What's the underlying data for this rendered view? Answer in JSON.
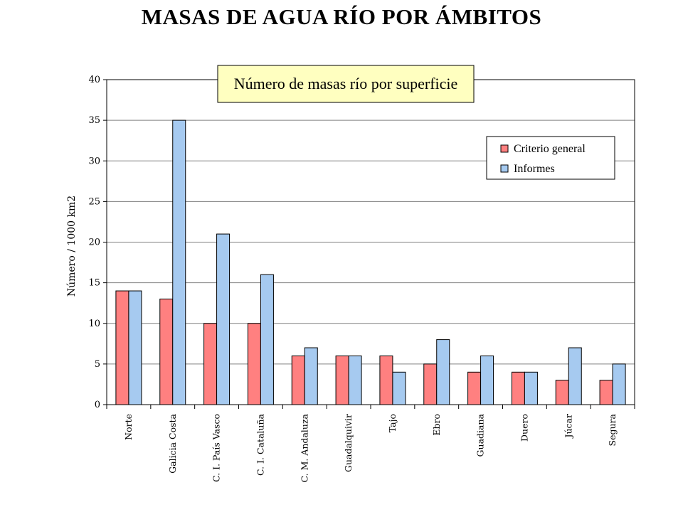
{
  "page": {
    "title": "MASAS DE AGUA RÍO POR ÁMBITOS"
  },
  "chart_data": {
    "type": "bar",
    "title": "Número de masas río por superficie",
    "xlabel": "",
    "ylabel": "Número / 1000 km2",
    "ylim": [
      0,
      40
    ],
    "yticks": [
      0,
      5,
      10,
      15,
      20,
      25,
      30,
      35,
      40
    ],
    "grid": true,
    "legend_position": "top-right",
    "categories": [
      "Norte",
      "Galicia Costa",
      "C. I. País Vasco",
      "C. I. Cataluña",
      "C. M. Andaluza",
      "Guadalquivir",
      "Tajo",
      "Ebro",
      "Guadiana",
      "Duero",
      "Júcar",
      "Segura"
    ],
    "series": [
      {
        "name": "Criterio general",
        "color": "#ff8080",
        "values": [
          14,
          13,
          10,
          10,
          6,
          6,
          6,
          5,
          4,
          4,
          3,
          3
        ]
      },
      {
        "name": "Informes",
        "color": "#a6caf0",
        "values": [
          14,
          35,
          21,
          16,
          7,
          6,
          4,
          8,
          6,
          4,
          7,
          5
        ]
      }
    ],
    "colors": {
      "title_box": "#ffffc0",
      "grid": "#808080",
      "axis": "#000000"
    }
  }
}
